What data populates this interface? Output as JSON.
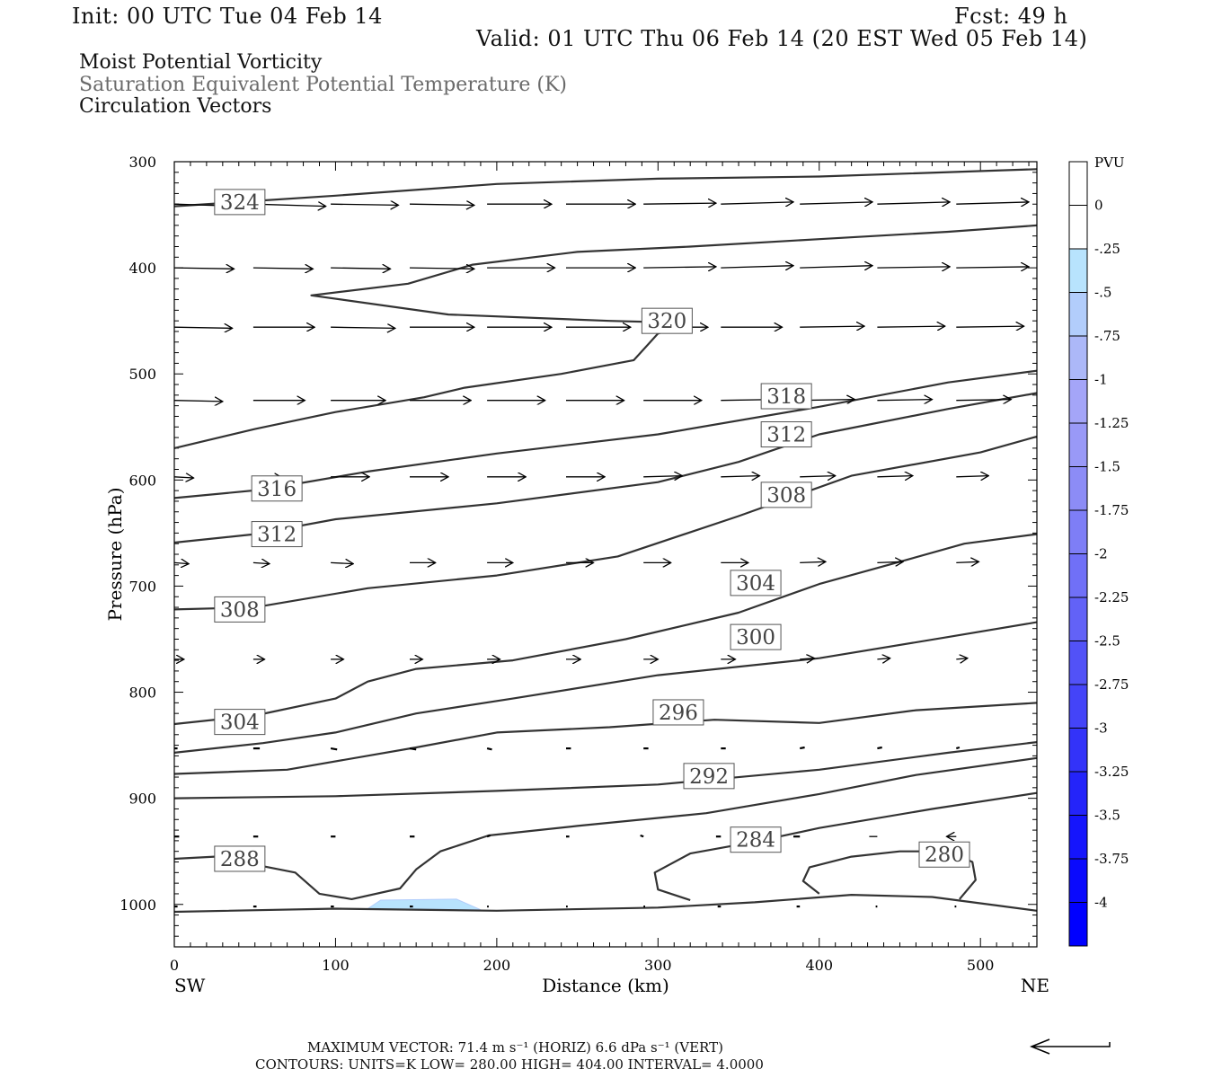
{
  "header": {
    "init": "Init: 00 UTC Tue 04 Feb 14",
    "fcst": "Fcst:   49 h",
    "valid": "Valid: 01 UTC Thu 06 Feb 14 (20 EST Wed 05 Feb 14)"
  },
  "titles": [
    "Moist Potential Vorticity",
    "Saturation Equivalent Potential Temperature (K)",
    "Circulation Vectors"
  ],
  "chart_data": {
    "type": "cross-section",
    "x_axis": {
      "label": "Distance (km)",
      "range": [
        0,
        535
      ],
      "ticks": [
        0,
        100,
        200,
        300,
        400,
        500
      ],
      "left_end": "SW",
      "right_end": "NE"
    },
    "y_axis": {
      "label": "Pressure (hPa)",
      "range": [
        300,
        1040
      ],
      "inverted": true,
      "ticks": [
        300,
        400,
        500,
        600,
        700,
        800,
        900,
        1000
      ]
    },
    "contours": [
      {
        "level": 324,
        "points": [
          [
            0,
            342
          ],
          [
            40,
            338
          ],
          [
            100,
            332
          ],
          [
            200,
            321
          ],
          [
            300,
            316
          ],
          [
            400,
            314
          ],
          [
            535,
            307
          ]
        ]
      },
      {
        "level": 320,
        "points": [
          [
            535,
            360
          ],
          [
            480,
            366
          ],
          [
            400,
            373
          ],
          [
            320,
            380
          ],
          [
            250,
            385
          ],
          [
            185,
            397
          ],
          [
            145,
            415
          ],
          [
            85,
            426
          ],
          [
            170,
            444
          ],
          [
            270,
            450
          ],
          [
            320,
            452
          ],
          [
            300,
            462
          ],
          [
            285,
            487
          ],
          [
            240,
            500
          ],
          [
            180,
            513
          ],
          [
            155,
            522
          ],
          [
            100,
            536
          ],
          [
            50,
            552
          ],
          [
            0,
            570
          ]
        ]
      },
      {
        "level": 316,
        "points": [
          [
            0,
            617
          ],
          [
            55,
            609
          ],
          [
            120,
            592
          ],
          [
            200,
            575
          ],
          [
            300,
            557
          ],
          [
            400,
            531
          ],
          [
            480,
            508
          ],
          [
            535,
            497
          ]
        ]
      },
      {
        "level": 312,
        "points": [
          [
            0,
            659
          ],
          [
            50,
            651
          ],
          [
            100,
            637
          ],
          [
            200,
            622
          ],
          [
            300,
            602
          ],
          [
            350,
            583
          ],
          [
            400,
            557
          ],
          [
            480,
            533
          ],
          [
            535,
            518
          ]
        ]
      },
      {
        "level": 308,
        "points": [
          [
            0,
            722
          ],
          [
            50,
            720
          ],
          [
            120,
            702
          ],
          [
            200,
            690
          ],
          [
            275,
            672
          ],
          [
            350,
            634
          ],
          [
            420,
            596
          ],
          [
            500,
            574
          ],
          [
            535,
            559
          ]
        ]
      },
      {
        "level": 304,
        "points": [
          [
            0,
            830
          ],
          [
            50,
            822
          ],
          [
            100,
            806
          ],
          [
            120,
            790
          ],
          [
            150,
            778
          ],
          [
            210,
            770
          ],
          [
            280,
            750
          ],
          [
            350,
            725
          ],
          [
            400,
            698
          ],
          [
            450,
            677
          ],
          [
            490,
            660
          ],
          [
            535,
            651
          ]
        ]
      },
      {
        "level": 300,
        "points": [
          [
            0,
            857
          ],
          [
            55,
            848
          ],
          [
            100,
            838
          ],
          [
            150,
            820
          ],
          [
            210,
            806
          ],
          [
            300,
            784
          ],
          [
            400,
            768
          ],
          [
            480,
            748
          ],
          [
            535,
            734
          ]
        ]
      },
      {
        "level": 296,
        "points": [
          [
            0,
            877
          ],
          [
            70,
            873
          ],
          [
            150,
            852
          ],
          [
            200,
            838
          ],
          [
            270,
            833
          ],
          [
            335,
            826
          ],
          [
            400,
            829
          ],
          [
            460,
            817
          ],
          [
            535,
            810
          ]
        ]
      },
      {
        "level": 292,
        "points": [
          [
            0,
            900
          ],
          [
            100,
            898
          ],
          [
            200,
            893
          ],
          [
            300,
            887
          ],
          [
            400,
            873
          ],
          [
            480,
            857
          ],
          [
            535,
            847
          ]
        ]
      },
      {
        "level": 288,
        "points": [
          [
            0,
            957
          ],
          [
            25,
            955
          ],
          [
            75,
            970
          ],
          [
            90,
            990
          ],
          [
            110,
            995
          ],
          [
            140,
            985
          ],
          [
            150,
            967
          ],
          [
            165,
            950
          ],
          [
            195,
            935
          ],
          [
            250,
            926
          ],
          [
            330,
            914
          ],
          [
            400,
            896
          ],
          [
            460,
            878
          ],
          [
            535,
            862
          ]
        ]
      },
      {
        "level": 284,
        "points": [
          [
            320,
            996
          ],
          [
            300,
            986
          ],
          [
            298,
            970
          ],
          [
            320,
            952
          ],
          [
            360,
            941
          ],
          [
            400,
            928
          ],
          [
            470,
            910
          ],
          [
            535,
            895
          ]
        ]
      },
      {
        "level": 280,
        "points": [
          [
            400,
            990
          ],
          [
            390,
            978
          ],
          [
            394,
            965
          ],
          [
            420,
            955
          ],
          [
            450,
            950
          ],
          [
            480,
            950
          ],
          [
            495,
            960
          ],
          [
            497,
            977
          ],
          [
            487,
            995
          ]
        ]
      },
      {
        "level": "bottom",
        "points": [
          [
            0,
            1007
          ],
          [
            100,
            1004
          ],
          [
            200,
            1006
          ],
          [
            300,
            1003
          ],
          [
            360,
            998
          ],
          [
            420,
            991
          ],
          [
            470,
            993
          ],
          [
            510,
            1001
          ],
          [
            535,
            1006
          ]
        ]
      }
    ],
    "vectors": [
      {
        "p": 340,
        "x0": [
          0,
          49,
          97,
          146,
          194,
          243,
          291,
          339,
          388,
          436,
          485
        ],
        "dx": [
          40,
          45,
          42,
          40,
          40,
          43,
          45,
          45,
          45,
          45,
          45
        ],
        "dp": [
          2,
          2,
          1,
          1,
          0,
          0,
          -1,
          -2,
          -2,
          -2,
          -2
        ]
      },
      {
        "p": 400,
        "x0": [
          0,
          49,
          97,
          146,
          194,
          243,
          291,
          339,
          388,
          436,
          485
        ],
        "dx": [
          37,
          37,
          37,
          40,
          42,
          43,
          45,
          45,
          45,
          45,
          45
        ],
        "dp": [
          1,
          1,
          1,
          1,
          0,
          0,
          -1,
          -2,
          -2,
          -1,
          -1
        ]
      },
      {
        "p": 456,
        "x0": [
          0,
          49,
          97,
          146,
          194,
          243,
          291,
          339,
          388,
          436,
          485
        ],
        "dx": [
          36,
          38,
          40,
          40,
          40,
          40,
          40,
          38,
          40,
          42,
          42
        ],
        "dp": [
          1,
          0,
          1,
          0,
          0,
          0,
          0,
          0,
          -1,
          -1,
          -1
        ]
      },
      {
        "p": 525,
        "x0": [
          0,
          49,
          97,
          146,
          194,
          243,
          291,
          339,
          388,
          436,
          485
        ],
        "dx": [
          30,
          32,
          34,
          38,
          36,
          36,
          36,
          36,
          34,
          34,
          34
        ],
        "dp": [
          1,
          0,
          0,
          0,
          0,
          0,
          0,
          -1,
          -1,
          -1,
          -1
        ]
      },
      {
        "p": 597,
        "x0": [
          0,
          49,
          97,
          146,
          194,
          243,
          291,
          339,
          388,
          436,
          485
        ],
        "dx": [
          12,
          18,
          24,
          24,
          24,
          24,
          24,
          24,
          22,
          22,
          20
        ],
        "dp": [
          1,
          1,
          0,
          0,
          0,
          0,
          -1,
          -1,
          -1,
          -1,
          -1
        ]
      },
      {
        "p": 678,
        "x0": [
          0,
          49,
          97,
          146,
          194,
          243,
          291,
          339,
          388,
          436,
          485
        ],
        "dx": [
          9,
          10,
          14,
          16,
          16,
          17,
          17,
          17,
          16,
          16,
          14
        ],
        "dp": [
          1,
          1,
          1,
          0,
          0,
          0,
          0,
          0,
          -1,
          -1,
          -1
        ]
      },
      {
        "p": 769,
        "x0": [
          0,
          49,
          97,
          146,
          194,
          243,
          291,
          339,
          388,
          436,
          485
        ],
        "dx": [
          6,
          7,
          8,
          8,
          8,
          9,
          9,
          9,
          9,
          8,
          7
        ],
        "dp": [
          0,
          0,
          0,
          0,
          0,
          0,
          0,
          0,
          -1,
          -1,
          -1
        ]
      },
      {
        "p": 853,
        "x0": [
          0,
          49,
          97,
          146,
          194,
          243,
          291,
          339,
          388,
          436,
          485
        ],
        "dx": [
          2,
          4,
          4,
          4,
          3,
          3,
          3,
          3,
          3,
          3,
          2
        ],
        "dp": [
          0,
          0,
          1,
          1,
          1,
          0,
          0,
          0,
          -1,
          -1,
          -1
        ]
      },
      {
        "p": 936,
        "x0": [
          0,
          49,
          97,
          146,
          194,
          243,
          291,
          339,
          388,
          436,
          485
        ],
        "dx": [
          3,
          3,
          3,
          3,
          2,
          2,
          -2,
          -3,
          -4,
          -5,
          -6
        ],
        "dp": [
          0,
          0,
          0,
          0,
          -1,
          0,
          -1,
          0,
          0,
          0,
          0
        ]
      },
      {
        "p": 1002,
        "x0": [
          0,
          49,
          97,
          146,
          194,
          243,
          291,
          339,
          388,
          436,
          485
        ],
        "dx": [
          2,
          2,
          2,
          2,
          1,
          1,
          1,
          -2,
          -2,
          -1,
          -1
        ],
        "dp": [
          0,
          0,
          0,
          0,
          0,
          0,
          0,
          0,
          0,
          0,
          0
        ]
      }
    ],
    "mpv_fill": {
      "level": -0.25,
      "x_range": [
        120,
        190
      ],
      "p_range": [
        996,
        1004
      ]
    },
    "colorbar": {
      "unit": "PVU",
      "labels": [
        "0",
        "-.25",
        "-.5",
        "-.75",
        "-1",
        "-1.25",
        "-1.5",
        "-1.75",
        "-2",
        "-2.25",
        "-2.5",
        "-2.75",
        "-3",
        "-3.25",
        "-3.5",
        "-3.75",
        "-4"
      ],
      "colors": [
        "#ffffff",
        "#ffffff",
        "#b8e3fd",
        "#b2cdfb",
        "#acb8f8",
        "#a4a5f8",
        "#9999f7",
        "#8c8cf6",
        "#7e7ef6",
        "#7070f7",
        "#6262f7",
        "#5252f7",
        "#4444f8",
        "#3333f9",
        "#2424fa",
        "#1515fc",
        "#0a0afd",
        "#0000ff"
      ]
    }
  },
  "footer": {
    "max_vector": "MAXIMUM VECTOR:  71.4 m s⁻¹ (HORIZ)          6.6 dPa s⁻¹ (VERT)",
    "contours": "CONTOURS:  UNITS=K  LOW=  280.00       HIGH=  404.00       INTERVAL=    4.0000"
  }
}
